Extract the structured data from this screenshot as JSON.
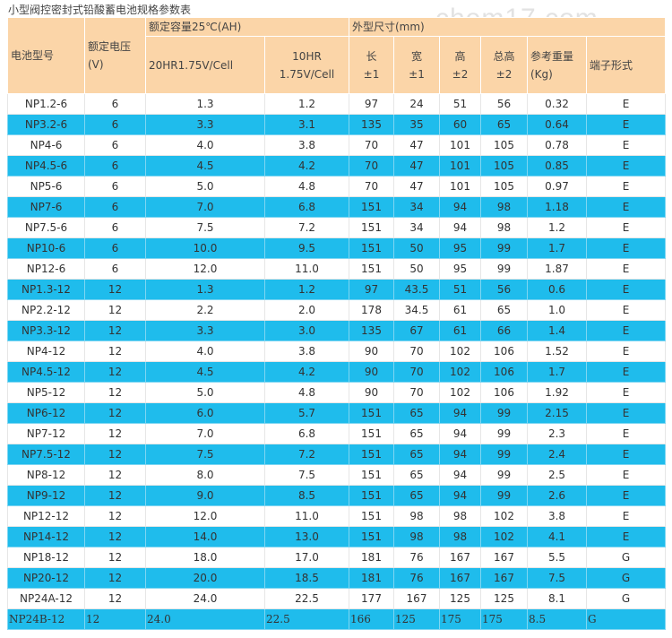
{
  "title": "小型阀控密封式铅酸蓄电池规格参数表",
  "watermark": "chem17.com",
  "header": {
    "model": "电池型号",
    "voltage": "额定电压(V)",
    "capacity_group": "额定容量25℃(AH)",
    "cap_20hr": "20HR1.75V/Cell",
    "cap_10hr_line1": "10HR",
    "cap_10hr_line2": "1.75V/Cell",
    "size_group": "外型尺寸(mm)",
    "length": "长",
    "length_tol": "±1",
    "width": "宽",
    "width_tol": "±1",
    "height": "高",
    "height_tol": "±2",
    "total_height": "总高",
    "total_height_tol": "±2",
    "weight_line1": "参考重量",
    "weight_line2": "(Kg)",
    "terminal": "端子形式"
  },
  "rows": [
    [
      "NP1.2-6",
      "6",
      "1.3",
      "1.2",
      "97",
      "24",
      "51",
      "56",
      "0.32",
      "E"
    ],
    [
      "NP3.2-6",
      "6",
      "3.3",
      "3.1",
      "135",
      "35",
      "60",
      "65",
      "0.64",
      "E"
    ],
    [
      "NP4-6",
      "6",
      "4.0",
      "3.8",
      "70",
      "47",
      "101",
      "105",
      "0.78",
      "E"
    ],
    [
      "NP4.5-6",
      "6",
      "4.5",
      "4.2",
      "70",
      "47",
      "101",
      "105",
      "0.85",
      "E"
    ],
    [
      "NP5-6",
      "6",
      "5.0",
      "4.8",
      "70",
      "47",
      "101",
      "105",
      "0.97",
      "E"
    ],
    [
      "NP7-6",
      "6",
      "7.0",
      "6.8",
      "151",
      "34",
      "94",
      "98",
      "1.18",
      "E"
    ],
    [
      "NP7.5-6",
      "6",
      "7.5",
      "7.2",
      "151",
      "34",
      "94",
      "98",
      "1.2",
      "E"
    ],
    [
      "NP10-6",
      "6",
      "10.0",
      "9.5",
      "151",
      "50",
      "95",
      "99",
      "1.7",
      "E"
    ],
    [
      "NP12-6",
      "6",
      "12.0",
      "11.0",
      "151",
      "50",
      "95",
      "99",
      "1.87",
      "E"
    ],
    [
      "NP1.3-12",
      "12",
      "1.3",
      "1.2",
      "97",
      "43.5",
      "51",
      "56",
      "0.6",
      "E"
    ],
    [
      "NP2.2-12",
      "12",
      "2.2",
      "2.0",
      "178",
      "34.5",
      "61",
      "65",
      "1.0",
      "E"
    ],
    [
      "NP3.3-12",
      "12",
      "3.3",
      "3.0",
      "135",
      "67",
      "61",
      "66",
      "1.4",
      "E"
    ],
    [
      "NP4-12",
      "12",
      "4.0",
      "3.8",
      "90",
      "70",
      "102",
      "106",
      "1.52",
      "E"
    ],
    [
      "NP4.5-12",
      "12",
      "4.5",
      "4.2",
      "90",
      "70",
      "102",
      "106",
      "1.7",
      "E"
    ],
    [
      "NP5-12",
      "12",
      "5.0",
      "4.8",
      "90",
      "70",
      "102",
      "106",
      "1.92",
      "E"
    ],
    [
      "NP6-12",
      "12",
      "6.0",
      "5.7",
      "151",
      "65",
      "94",
      "99",
      "2.15",
      "E"
    ],
    [
      "NP7-12",
      "12",
      "7.0",
      "6.8",
      "151",
      "65",
      "94",
      "99",
      "2.3",
      "E"
    ],
    [
      "NP7.5-12",
      "12",
      "7.5",
      "7.2",
      "151",
      "65",
      "94",
      "99",
      "2.4",
      "E"
    ],
    [
      "NP8-12",
      "12",
      "8.0",
      "7.5",
      "151",
      "65",
      "94",
      "99",
      "2.5",
      "E"
    ],
    [
      "NP9-12",
      "12",
      "9.0",
      "8.5",
      "151",
      "65",
      "94",
      "99",
      "2.6",
      "E"
    ],
    [
      "NP12-12",
      "12",
      "12.0",
      "11.0",
      "151",
      "98",
      "98",
      "102",
      "3.8",
      "E"
    ],
    [
      "NP14-12",
      "12",
      "14.0",
      "13.0",
      "151",
      "98",
      "98",
      "102",
      "4.1",
      "E"
    ],
    [
      "NP18-12",
      "12",
      "18.0",
      "17.0",
      "181",
      "76",
      "167",
      "167",
      "5.5",
      "G"
    ],
    [
      "NP20-12",
      "12",
      "20.0",
      "18.5",
      "181",
      "76",
      "167",
      "167",
      "7.5",
      "G"
    ],
    [
      "NP24A-12",
      "12",
      "24.0",
      "22.5",
      "177",
      "167",
      "125",
      "125",
      "8.1",
      "G"
    ],
    [
      "NP24B-12",
      "12",
      "24.0",
      "22.5",
      "166",
      "125",
      "175",
      "175",
      "8.5",
      "G"
    ]
  ]
}
